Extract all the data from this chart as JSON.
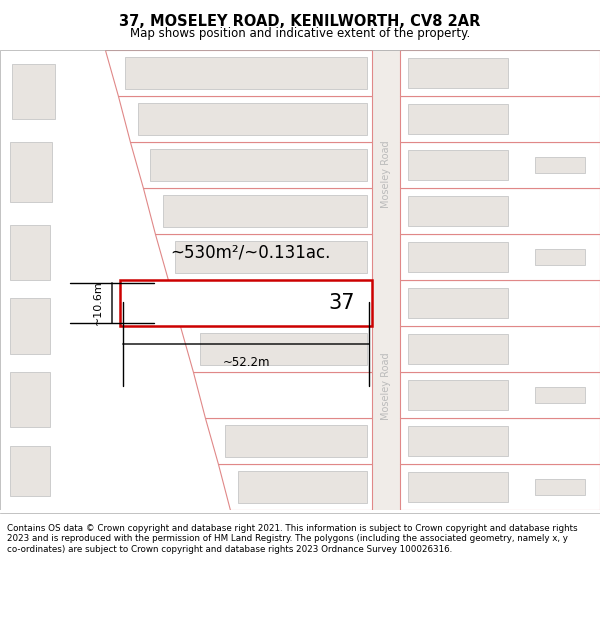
{
  "title": "37, MOSELEY ROAD, KENILWORTH, CV8 2AR",
  "subtitle": "Map shows position and indicative extent of the property.",
  "footer_lines": [
    "Contains OS data © Crown copyright and database right 2021. This information is subject to Crown copyright and database rights 2023 and is reproduced with the permission of",
    "HM Land Registry. The polygons (including the associated geometry, namely x, y co-ordinates) are subject to Crown copyright and database rights 2023 Ordnance Survey",
    "100026316."
  ],
  "map_bg": "#f8f6f4",
  "plot_fill": "#ffffff",
  "plot_edge": "#e08888",
  "building_fill": "#e8e4e0",
  "building_edge": "#cccccc",
  "highlight_fill": "#ffffff",
  "highlight_edge": "#cc0000",
  "road_fill": "#f0ece8",
  "road_edge": "#cccccc",
  "road_label_color": "#bbbbbb",
  "area_text": "~530m²/~0.131ac.",
  "number_text": "37",
  "dim_width": "~52.2m",
  "dim_height": "~10.6m"
}
